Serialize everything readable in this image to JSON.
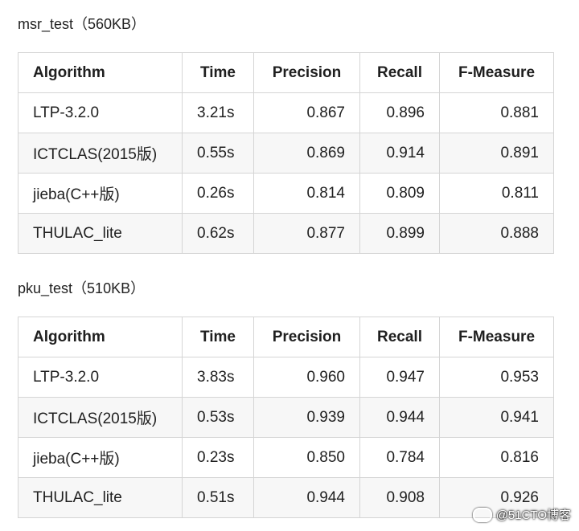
{
  "sections": [
    {
      "caption": "msr_test（560KB）",
      "headers": [
        "Algorithm",
        "Time",
        "Precision",
        "Recall",
        "F-Measure"
      ],
      "rows": [
        [
          "LTP-3.2.0",
          "3.21s",
          "0.867",
          "0.896",
          "0.881"
        ],
        [
          "ICTCLAS(2015版)",
          "0.55s",
          "0.869",
          "0.914",
          "0.891"
        ],
        [
          "jieba(C++版)",
          "0.26s",
          "0.814",
          "0.809",
          "0.811"
        ],
        [
          "THULAC_lite",
          "0.62s",
          "0.877",
          "0.899",
          "0.888"
        ]
      ]
    },
    {
      "caption": "pku_test（510KB）",
      "headers": [
        "Algorithm",
        "Time",
        "Precision",
        "Recall",
        "F-Measure"
      ],
      "rows": [
        [
          "LTP-3.2.0",
          "3.83s",
          "0.960",
          "0.947",
          "0.953"
        ],
        [
          "ICTCLAS(2015版)",
          "0.53s",
          "0.939",
          "0.944",
          "0.941"
        ],
        [
          "jieba(C++版)",
          "0.23s",
          "0.850",
          "0.784",
          "0.816"
        ],
        [
          "THULAC_lite",
          "0.51s",
          "0.944",
          "0.908",
          "0.926"
        ]
      ]
    }
  ],
  "watermark": {
    "text": "@51CTO博客",
    "icon": "chat-bubble-icon"
  }
}
